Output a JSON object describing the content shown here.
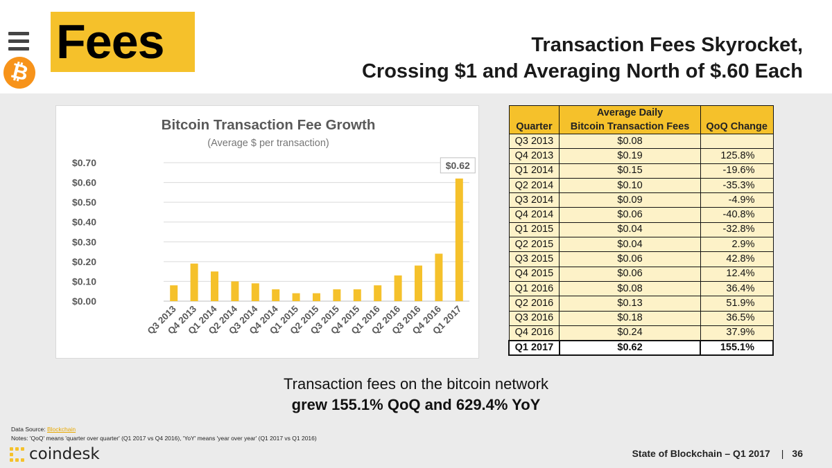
{
  "header": {
    "section_title": "Fees",
    "headline_line1": "Transaction Fees Skyrocket,",
    "headline_line2": "Crossing $1 and Averaging North of $.60 Each",
    "bitcoin_symbol": "₿"
  },
  "chart_data": {
    "type": "bar",
    "title": "Bitcoin Transaction Fee Growth",
    "subtitle": "(Average $ per transaction)",
    "categories": [
      "Q3 2013",
      "Q4 2013",
      "Q1 2014",
      "Q2 2014",
      "Q3 2014",
      "Q4 2014",
      "Q1 2015",
      "Q2 2015",
      "Q3 2015",
      "Q4 2015",
      "Q1 2016",
      "Q2 2016",
      "Q3 2016",
      "Q4 2016",
      "Q1 2017"
    ],
    "values": [
      0.08,
      0.19,
      0.15,
      0.1,
      0.09,
      0.06,
      0.04,
      0.04,
      0.06,
      0.06,
      0.08,
      0.13,
      0.18,
      0.24,
      0.62
    ],
    "ylim": [
      0,
      0.7
    ],
    "yticks": [
      "$0.70",
      "$0.60",
      "$0.50",
      "$0.40",
      "$0.30",
      "$0.20",
      "$0.10",
      "$0.00"
    ],
    "ytick_values": [
      0.7,
      0.6,
      0.5,
      0.4,
      0.3,
      0.2,
      0.1,
      0.0
    ],
    "callout": "$0.62",
    "bar_color": "#f5c12b",
    "grid": true,
    "xlabel": "",
    "ylabel": ""
  },
  "table": {
    "headers": {
      "quarter": "Quarter",
      "fees_line1": "Average Daily",
      "fees_line2": "Bitcoin Transaction Fees",
      "change": "QoQ Change"
    },
    "rows": [
      {
        "quarter": "Q3 2013",
        "fee": "$0.08",
        "change": ""
      },
      {
        "quarter": "Q4 2013",
        "fee": "$0.19",
        "change": "125.8%"
      },
      {
        "quarter": "Q1 2014",
        "fee": "$0.15",
        "change": "-19.6%"
      },
      {
        "quarter": "Q2 2014",
        "fee": "$0.10",
        "change": "-35.3%"
      },
      {
        "quarter": "Q3 2014",
        "fee": "$0.09",
        "change": "-4.9%"
      },
      {
        "quarter": "Q4 2014",
        "fee": "$0.06",
        "change": "-40.8%"
      },
      {
        "quarter": "Q1 2015",
        "fee": "$0.04",
        "change": "-32.8%"
      },
      {
        "quarter": "Q2 2015",
        "fee": "$0.04",
        "change": "2.9%"
      },
      {
        "quarter": "Q3 2015",
        "fee": "$0.06",
        "change": "42.8%"
      },
      {
        "quarter": "Q4 2015",
        "fee": "$0.06",
        "change": "12.4%"
      },
      {
        "quarter": "Q1 2016",
        "fee": "$0.08",
        "change": "36.4%"
      },
      {
        "quarter": "Q2 2016",
        "fee": "$0.13",
        "change": "51.9%"
      },
      {
        "quarter": "Q3 2016",
        "fee": "$0.18",
        "change": "36.5%"
      },
      {
        "quarter": "Q4 2016",
        "fee": "$0.24",
        "change": "37.9%"
      },
      {
        "quarter": "Q1 2017",
        "fee": "$0.62",
        "change": "155.1%"
      }
    ]
  },
  "summary": {
    "line1": "Transaction fees on the bitcoin network",
    "line2": "grew 155.1% QoQ and 629.4% YoY"
  },
  "notes": {
    "source_label": "Data Source: ",
    "source_link": "Blockchain",
    "notes_text": "Notes: 'QoQ' means 'quarter over quarter' (Q1 2017 vs Q4 2016), 'YoY' means 'year over year' (Q1 2017 vs Q1 2016)"
  },
  "footer": {
    "brand": "coindesk",
    "report": "State of Blockchain – Q1 2017",
    "separator": "|",
    "page_number": "36"
  },
  "colors": {
    "accent": "#f5c12b",
    "bitcoin": "#f7931a",
    "table_row": "#fdf2c8"
  }
}
